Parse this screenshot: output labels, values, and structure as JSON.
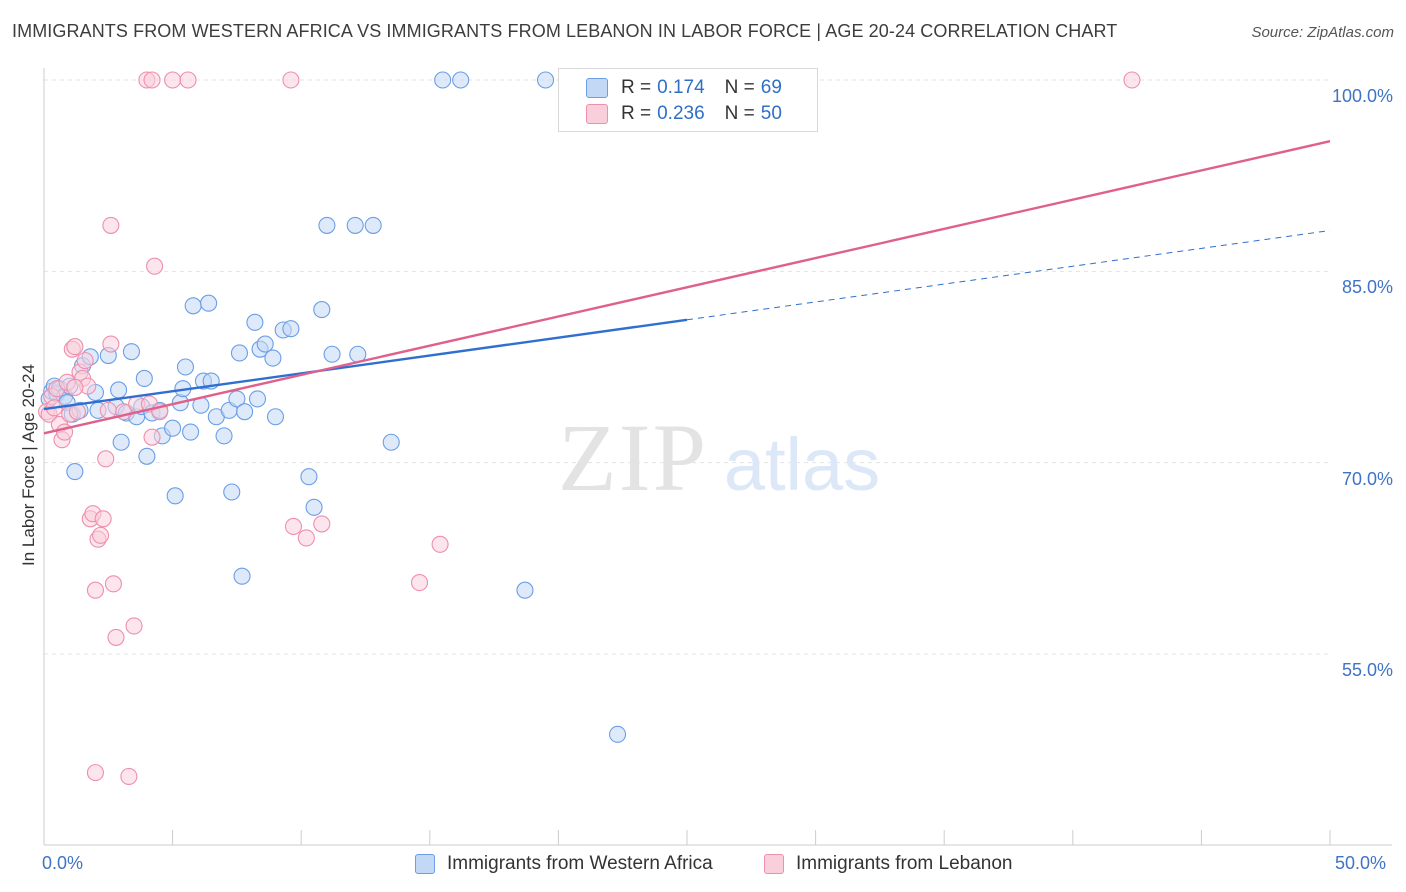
{
  "title": "IMMIGRANTS FROM WESTERN AFRICA VS IMMIGRANTS FROM LEBANON IN LABOR FORCE | AGE 20-24 CORRELATION CHART",
  "source": "Source: ZipAtlas.com",
  "watermark": {
    "zip": "ZIP",
    "atlas": "atlas"
  },
  "legend_top": {
    "r_label": "R =",
    "n_label": "N =",
    "rows": [
      {
        "r": "0.174",
        "n": "69",
        "color": "#a8c8f0"
      },
      {
        "r": "0.236",
        "n": "50",
        "color": "#f6b8cb"
      }
    ]
  },
  "chart_data": {
    "type": "scatter",
    "title": "IMMIGRANTS FROM WESTERN AFRICA VS IMMIGRANTS FROM LEBANON IN LABOR FORCE | AGE 20-24 CORRELATION CHART",
    "xlabel": "",
    "ylabel": "In Labor Force | Age 20-24",
    "xlim": [
      0,
      50
    ],
    "ylim": [
      40,
      102
    ],
    "x_tick_labels": [
      "0.0%",
      "50.0%"
    ],
    "y_ticks": [
      55,
      70,
      85,
      100
    ],
    "y_tick_labels": [
      "55.0%",
      "70.0%",
      "85.0%",
      "100.0%"
    ],
    "grid": true,
    "legend_position": "bottom",
    "series": [
      {
        "name": "Immigrants from Western Africa",
        "color": "#6a9ee6",
        "fill": "#c2d8f5",
        "r": 0.174,
        "n": 69,
        "trend": {
          "x0": 0,
          "y0": 74.2,
          "x1": 25,
          "y1": 81.2,
          "dash_x1": 50,
          "dash_y1": 88.2
        },
        "points": [
          [
            0.2,
            75.0
          ],
          [
            0.3,
            75.6
          ],
          [
            0.4,
            76.0
          ],
          [
            0.5,
            75.4
          ],
          [
            0.6,
            75.8
          ],
          [
            0.8,
            75.2
          ],
          [
            0.9,
            74.7
          ],
          [
            1.0,
            76.0
          ],
          [
            1.1,
            73.8
          ],
          [
            1.2,
            69.3
          ],
          [
            1.4,
            74.1
          ],
          [
            1.5,
            77.6
          ],
          [
            1.8,
            78.3
          ],
          [
            2.0,
            75.5
          ],
          [
            2.1,
            74.1
          ],
          [
            2.5,
            78.4
          ],
          [
            2.8,
            74.4
          ],
          [
            2.9,
            75.7
          ],
          [
            3.0,
            71.6
          ],
          [
            3.2,
            73.9
          ],
          [
            3.4,
            78.7
          ],
          [
            3.6,
            73.6
          ],
          [
            3.8,
            74.4
          ],
          [
            3.9,
            76.6
          ],
          [
            4.0,
            70.5
          ],
          [
            4.2,
            73.9
          ],
          [
            4.5,
            74.1
          ],
          [
            4.6,
            72.1
          ],
          [
            5.0,
            72.7
          ],
          [
            5.1,
            67.4
          ],
          [
            5.3,
            74.7
          ],
          [
            5.4,
            75.8
          ],
          [
            5.5,
            77.5
          ],
          [
            5.7,
            72.4
          ],
          [
            5.8,
            82.3
          ],
          [
            6.1,
            74.5
          ],
          [
            6.2,
            76.4
          ],
          [
            6.4,
            82.5
          ],
          [
            6.5,
            76.4
          ],
          [
            6.7,
            73.6
          ],
          [
            7.0,
            72.1
          ],
          [
            7.2,
            74.1
          ],
          [
            7.3,
            67.7
          ],
          [
            7.5,
            75.0
          ],
          [
            7.6,
            78.6
          ],
          [
            7.7,
            61.1
          ],
          [
            7.8,
            74.0
          ],
          [
            8.2,
            81.0
          ],
          [
            8.3,
            75.0
          ],
          [
            8.4,
            78.9
          ],
          [
            8.6,
            79.3
          ],
          [
            8.9,
            78.2
          ],
          [
            9.0,
            73.6
          ],
          [
            9.3,
            80.4
          ],
          [
            9.6,
            80.5
          ],
          [
            10.3,
            68.9
          ],
          [
            10.5,
            66.5
          ],
          [
            10.8,
            82.0
          ],
          [
            11.2,
            78.5
          ],
          [
            12.2,
            78.5
          ],
          [
            11.0,
            88.6
          ],
          [
            12.1,
            88.6
          ],
          [
            12.8,
            88.6
          ],
          [
            13.5,
            71.6
          ],
          [
            15.5,
            100.0
          ],
          [
            16.2,
            100.0
          ],
          [
            19.5,
            100.0
          ],
          [
            18.7,
            60.0
          ],
          [
            22.3,
            48.7
          ]
        ]
      },
      {
        "name": "Immigrants from Lebanon",
        "color": "#ee8fad",
        "fill": "#f9cfdc",
        "r": 0.236,
        "n": 50,
        "trend": {
          "x0": 0,
          "y0": 72.3,
          "x1": 50,
          "y1": 95.2
        },
        "points": [
          [
            0.1,
            74.0
          ],
          [
            0.2,
            73.8
          ],
          [
            0.3,
            75.2
          ],
          [
            0.4,
            74.3
          ],
          [
            0.5,
            75.8
          ],
          [
            0.6,
            73.0
          ],
          [
            0.7,
            71.8
          ],
          [
            0.8,
            72.4
          ],
          [
            0.9,
            76.3
          ],
          [
            1.0,
            73.8
          ],
          [
            1.1,
            78.9
          ],
          [
            1.2,
            79.1
          ],
          [
            1.3,
            74.0
          ],
          [
            1.4,
            77.1
          ],
          [
            1.5,
            76.6
          ],
          [
            1.6,
            78.0
          ],
          [
            1.7,
            76.0
          ],
          [
            1.2,
            75.9
          ],
          [
            1.8,
            65.6
          ],
          [
            1.9,
            66.0
          ],
          [
            2.1,
            64.0
          ],
          [
            2.2,
            64.3
          ],
          [
            2.3,
            65.6
          ],
          [
            2.0,
            60.0
          ],
          [
            2.4,
            70.3
          ],
          [
            2.5,
            74.1
          ],
          [
            2.6,
            79.3
          ],
          [
            2.7,
            60.5
          ],
          [
            2.8,
            56.3
          ],
          [
            3.1,
            74.0
          ],
          [
            3.5,
            57.2
          ],
          [
            3.6,
            74.6
          ],
          [
            4.1,
            74.6
          ],
          [
            4.2,
            72.0
          ],
          [
            4.5,
            74.0
          ],
          [
            4.3,
            85.4
          ],
          [
            2.6,
            88.6
          ],
          [
            4.0,
            100.0
          ],
          [
            4.2,
            100.0
          ],
          [
            5.0,
            100.0
          ],
          [
            5.6,
            100.0
          ],
          [
            9.6,
            100.0
          ],
          [
            9.7,
            65.0
          ],
          [
            10.2,
            64.1
          ],
          [
            10.8,
            65.2
          ],
          [
            14.6,
            60.6
          ],
          [
            15.4,
            63.6
          ],
          [
            2.0,
            45.7
          ],
          [
            3.3,
            45.4
          ],
          [
            42.3,
            100.0
          ]
        ]
      }
    ]
  }
}
